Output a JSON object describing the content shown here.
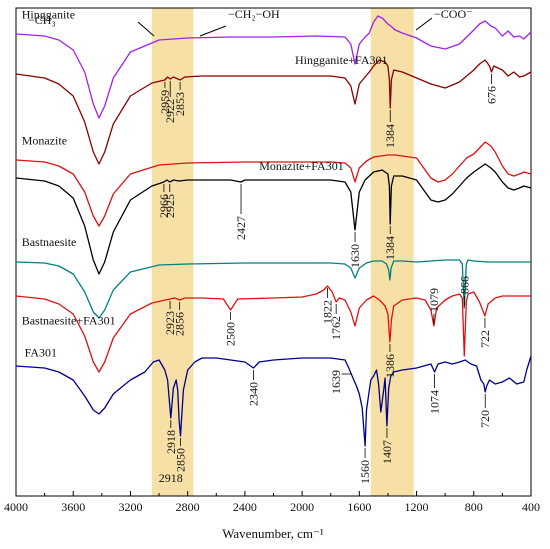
{
  "chart_data": {
    "type": "line",
    "xlabel": "Wavenumber, cm⁻¹",
    "xlim": [
      4000,
      400
    ],
    "x_ticks": [
      "4000",
      "3600",
      "3200",
      "2800",
      "2400",
      "2000",
      "1600",
      "1200",
      "800",
      "400"
    ],
    "grid": false,
    "highlight_bands": [
      {
        "from": 3050,
        "to": 2760
      },
      {
        "from": 1520,
        "to": 1220
      }
    ],
    "group_labels": [
      "−CH₃",
      "−CH₂−OH",
      "−COO⁻"
    ],
    "series": [
      {
        "name": "Hingganite",
        "color": "#a020f0",
        "label_x": 3960,
        "label_offset": -16,
        "x": [
          4000,
          3800,
          3700,
          3600,
          3520,
          3460,
          3420,
          3380,
          3320,
          3200,
          3000,
          2800,
          2500,
          2200,
          1900,
          1700,
          1660,
          1630,
          1600,
          1560,
          1530,
          1500,
          1470,
          1440,
          1400,
          1380,
          1350,
          1300,
          1200,
          1100,
          1000,
          900,
          800,
          760,
          720,
          680,
          650,
          600,
          560,
          520,
          480,
          450,
          400
        ],
        "y": [
          0,
          -2,
          -6,
          -16,
          -38,
          -70,
          -84,
          -72,
          -44,
          -18,
          -6,
          -4,
          -3,
          -3,
          -2,
          -3,
          -10,
          -30,
          -10,
          -3,
          1,
          12,
          18,
          16,
          10,
          8,
          4,
          1,
          -4,
          -12,
          -15,
          -10,
          4,
          10,
          13,
          8,
          6,
          -2,
          3,
          -3,
          -2,
          -5,
          2
        ]
      },
      {
        "name": "Hingganite+FA301",
        "color": "#8b0000",
        "label_x": 2050,
        "label_offset": -12,
        "x": [
          4000,
          3800,
          3700,
          3600,
          3520,
          3460,
          3420,
          3380,
          3320,
          3200,
          3050,
          2960,
          2940,
          2922,
          2900,
          2853,
          2820,
          2700,
          2400,
          2000,
          1800,
          1700,
          1660,
          1630,
          1600,
          1560,
          1530,
          1500,
          1460,
          1420,
          1400,
          1390,
          1384,
          1376,
          1360,
          1300,
          1200,
          1100,
          1000,
          900,
          800,
          760,
          720,
          690,
          676,
          660,
          600,
          560,
          520,
          480,
          450,
          400
        ],
        "y": [
          0,
          -4,
          -10,
          -22,
          -48,
          -78,
          -90,
          -78,
          -50,
          -22,
          -9,
          -6,
          -3,
          -5,
          -3,
          -6,
          -3,
          -2,
          -2,
          -2,
          -2,
          -4,
          -12,
          -30,
          -10,
          -3,
          2,
          8,
          14,
          12,
          8,
          -6,
          -34,
          -6,
          4,
          2,
          -4,
          -10,
          -14,
          -8,
          4,
          10,
          14,
          8,
          2,
          8,
          4,
          -2,
          2,
          -3,
          -2,
          2
        ]
      },
      {
        "name": "Monazite",
        "color": "#e01010",
        "label_x": 3960,
        "label_offset": -16,
        "x": [
          4000,
          3800,
          3700,
          3600,
          3520,
          3460,
          3420,
          3380,
          3320,
          3200,
          3000,
          2800,
          2400,
          2000,
          1800,
          1700,
          1660,
          1630,
          1600,
          1550,
          1500,
          1450,
          1400,
          1350,
          1300,
          1200,
          1150,
          1100,
          1050,
          1000,
          950,
          900,
          850,
          800,
          760,
          720,
          680,
          650,
          600,
          560,
          520,
          480,
          450,
          400
        ],
        "y": [
          0,
          -2,
          -6,
          -14,
          -32,
          -56,
          -66,
          -56,
          -34,
          -14,
          -5,
          -3,
          -2,
          -2,
          -2,
          -3,
          -8,
          -22,
          -8,
          -1,
          3,
          4,
          5,
          5,
          4,
          2,
          -8,
          -18,
          -22,
          -20,
          -14,
          -6,
          2,
          6,
          12,
          18,
          14,
          8,
          -6,
          -14,
          -16,
          -14,
          -12,
          -14
        ]
      },
      {
        "name": "Monazite+FA301",
        "color": "#000000",
        "label_x": 2300,
        "label_offset": -10,
        "x": [
          4000,
          3800,
          3700,
          3600,
          3520,
          3460,
          3420,
          3380,
          3320,
          3200,
          3050,
          2966,
          2945,
          2925,
          2900,
          2860,
          2800,
          2500,
          2427,
          2400,
          2000,
          1800,
          1700,
          1660,
          1630,
          1600,
          1560,
          1500,
          1440,
          1400,
          1390,
          1384,
          1376,
          1360,
          1300,
          1200,
          1150,
          1100,
          1050,
          1000,
          950,
          900,
          850,
          800,
          760,
          720,
          680,
          650,
          600,
          560,
          520,
          480,
          450,
          400
        ],
        "y": [
          0,
          -3,
          -8,
          -20,
          -48,
          -82,
          -96,
          -84,
          -54,
          -22,
          -8,
          -4,
          -2,
          -4,
          -2,
          -3,
          -2,
          -2,
          -4,
          -2,
          -2,
          -2,
          -4,
          -14,
          -52,
          -14,
          -2,
          6,
          8,
          4,
          -8,
          -46,
          -8,
          2,
          2,
          -2,
          -12,
          -22,
          -24,
          -22,
          -16,
          -8,
          0,
          6,
          10,
          14,
          10,
          6,
          -4,
          -10,
          -12,
          -10,
          -8,
          -10
        ]
      },
      {
        "name": "Bastnaesite",
        "color": "#008080",
        "label_x": 3960,
        "label_offset": -16,
        "x": [
          4000,
          3800,
          3700,
          3600,
          3520,
          3460,
          3420,
          3380,
          3320,
          3200,
          3000,
          2800,
          2400,
          2000,
          1800,
          1700,
          1660,
          1630,
          1600,
          1550,
          1500,
          1440,
          1410,
          1395,
          1386,
          1378,
          1360,
          1300,
          1200,
          1100,
          1000,
          900,
          880,
          866,
          852,
          840,
          800,
          700,
          600,
          500,
          400
        ],
        "y": [
          0,
          -1,
          -4,
          -12,
          -30,
          -50,
          -56,
          -48,
          -28,
          -10,
          -3,
          -2,
          -1,
          -1,
          -1,
          -2,
          -6,
          -16,
          -6,
          -1,
          1,
          1,
          -2,
          -8,
          -18,
          -6,
          1,
          1,
          0,
          1,
          2,
          2,
          -2,
          -46,
          -2,
          2,
          1,
          0,
          0,
          0,
          0
        ]
      },
      {
        "name": "Bastnaesite+FA301",
        "color": "#e01010",
        "label_x": 3960,
        "label_offset": 28,
        "x": [
          4000,
          3800,
          3700,
          3600,
          3520,
          3460,
          3420,
          3380,
          3320,
          3200,
          3050,
          2923,
          2890,
          2856,
          2820,
          2700,
          2550,
          2500,
          2450,
          2200,
          2000,
          1900,
          1850,
          1822,
          1790,
          1762,
          1740,
          1700,
          1660,
          1630,
          1600,
          1550,
          1500,
          1460,
          1420,
          1400,
          1395,
          1386,
          1376,
          1360,
          1300,
          1200,
          1140,
          1100,
          1079,
          1060,
          1000,
          950,
          900,
          880,
          866,
          852,
          840,
          800,
          760,
          722,
          700,
          650,
          600,
          500,
          400
        ],
        "y": [
          0,
          -3,
          -8,
          -18,
          -40,
          -66,
          -76,
          -66,
          -42,
          -18,
          -7,
          -3,
          -2,
          -4,
          -2,
          -2,
          -3,
          -14,
          -3,
          -2,
          -1,
          2,
          6,
          10,
          4,
          -6,
          -2,
          -4,
          -16,
          -30,
          -12,
          -4,
          0,
          -4,
          -10,
          -18,
          -30,
          -46,
          -24,
          -10,
          -4,
          -2,
          -4,
          -14,
          -30,
          -12,
          -4,
          0,
          2,
          -2,
          -60,
          -6,
          2,
          4,
          -6,
          -20,
          -8,
          -2,
          0,
          0,
          0
        ]
      },
      {
        "name": "FA301",
        "color": "#00008b",
        "label_x": 3940,
        "label_offset": -10,
        "x": [
          4000,
          3800,
          3700,
          3600,
          3520,
          3460,
          3420,
          3380,
          3320,
          3200,
          3100,
          3040,
          3000,
          2960,
          2940,
          2918,
          2900,
          2880,
          2870,
          2860,
          2850,
          2830,
          2800,
          2750,
          2700,
          2600,
          2500,
          2400,
          2340,
          2300,
          2200,
          2000,
          1800,
          1700,
          1680,
          1639,
          1620,
          1600,
          1580,
          1560,
          1550,
          1520,
          1500,
          1480,
          1465,
          1450,
          1430,
          1420,
          1407,
          1395,
          1380,
          1360,
          1300,
          1200,
          1150,
          1100,
          1074,
          1050,
          1000,
          950,
          900,
          860,
          820,
          780,
          750,
          730,
          720,
          710,
          690,
          650,
          600,
          550,
          500,
          450,
          430,
          400
        ],
        "y": [
          0,
          -2,
          -6,
          -14,
          -30,
          -44,
          -48,
          -42,
          -28,
          -14,
          -6,
          4,
          6,
          -4,
          -14,
          -52,
          -22,
          -14,
          -24,
          -54,
          -70,
          -24,
          -4,
          4,
          8,
          8,
          6,
          4,
          -2,
          4,
          6,
          8,
          8,
          6,
          0,
          -14,
          -20,
          -28,
          -42,
          -80,
          -44,
          -14,
          -10,
          -4,
          -18,
          -46,
          -24,
          -12,
          -60,
          -22,
          -10,
          -6,
          -4,
          -2,
          0,
          2,
          -6,
          2,
          4,
          2,
          4,
          6,
          2,
          0,
          -14,
          -18,
          -26,
          -20,
          -14,
          -18,
          -16,
          -12,
          -18,
          -16,
          -4,
          10
        ]
      }
    ],
    "annotations": [
      {
        "text": "2959",
        "x": 2959,
        "series": 1,
        "dir": "down",
        "len": 6
      },
      {
        "text": "2922",
        "x": 2922,
        "series": 1,
        "dir": "down",
        "len": 16
      },
      {
        "text": "2853",
        "x": 2853,
        "series": 1,
        "dir": "down",
        "len": 8
      },
      {
        "text": "1384",
        "x": 1384,
        "series": 1,
        "dir": "down",
        "len": 12
      },
      {
        "text": "676",
        "x": 676,
        "series": 1,
        "dir": "down",
        "len": 10
      },
      {
        "text": "2966",
        "x": 2966,
        "series": 3,
        "dir": "down",
        "len": 8
      },
      {
        "text": "2925",
        "x": 2925,
        "series": 3,
        "dir": "down",
        "len": 8
      },
      {
        "text": "2427",
        "x": 2427,
        "series": 3,
        "dir": "down",
        "len": 30
      },
      {
        "text": "1630",
        "x": 1630,
        "series": 3,
        "dir": "down",
        "len": 10
      },
      {
        "text": "1384",
        "x": 1384,
        "series": 3,
        "dir": "down",
        "len": 8
      },
      {
        "text": "866",
        "x": 866,
        "series": 4,
        "dir": "up",
        "len": 12
      },
      {
        "text": "2923",
        "x": 2923,
        "series": 5,
        "dir": "down",
        "len": 8
      },
      {
        "text": "2856",
        "x": 2856,
        "series": 5,
        "dir": "down",
        "len": 8
      },
      {
        "text": "2500",
        "x": 2500,
        "series": 5,
        "dir": "down",
        "len": 8
      },
      {
        "text": "1822",
        "x": 1822,
        "series": 5,
        "dir": "down",
        "len": 10
      },
      {
        "text": "1762",
        "x": 1762,
        "series": 5,
        "dir": "down",
        "len": 10
      },
      {
        "text": "1386",
        "x": 1386,
        "series": 5,
        "dir": "down",
        "len": 8
      },
      {
        "text": "1079",
        "x": 1079,
        "series": 5,
        "dir": "up",
        "len": 12
      },
      {
        "text": "722",
        "x": 722,
        "series": 5,
        "dir": "down",
        "len": 10
      },
      {
        "text": "2918",
        "x": 2918,
        "series": 6,
        "dir": "down",
        "len": 8
      },
      {
        "text": "2850",
        "x": 2850,
        "series": 6,
        "dir": "down",
        "len": 8
      },
      {
        "text": "2340",
        "x": 2340,
        "series": 6,
        "dir": "down",
        "len": 10
      },
      {
        "text": "1639",
        "x": 1639,
        "series": 6,
        "dir": "left",
        "len": 0
      },
      {
        "text": "1560",
        "x": 1560,
        "series": 6,
        "dir": "down",
        "len": 10
      },
      {
        "text": "1407",
        "x": 1407,
        "series": 6,
        "dir": "down",
        "len": 10
      },
      {
        "text": "1074",
        "x": 1074,
        "series": 6,
        "dir": "down",
        "len": 14
      },
      {
        "text": "720",
        "x": 720,
        "series": 6,
        "dir": "down",
        "len": 14
      }
    ],
    "bottom_label": {
      "text": "2918",
      "x": 2918
    }
  }
}
